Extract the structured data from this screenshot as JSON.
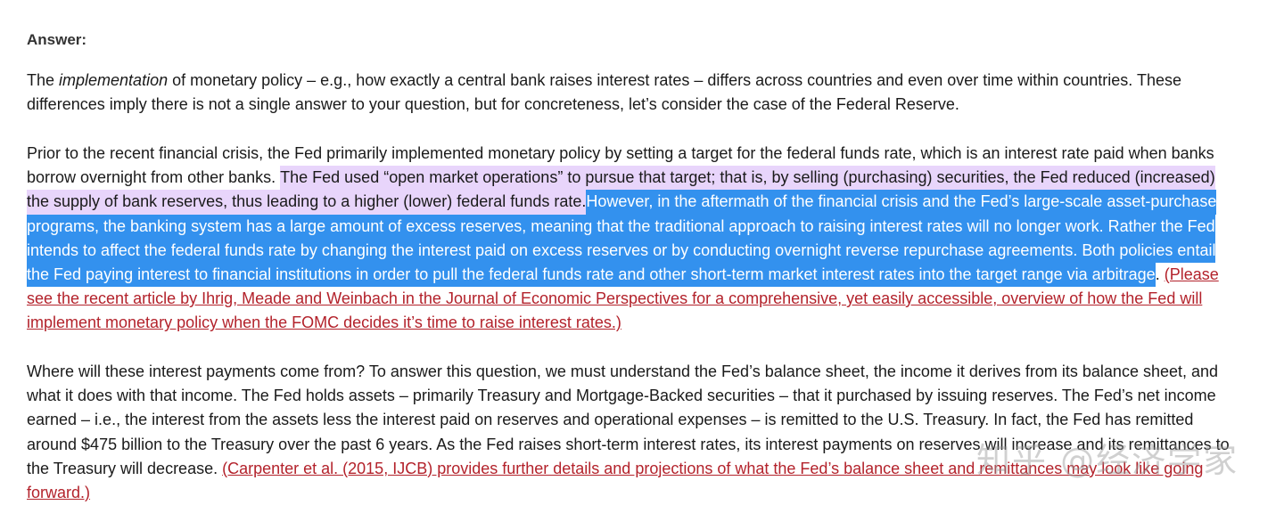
{
  "answer_label": "Answer:",
  "watermark": "知乎 @经济学家",
  "colors": {
    "highlight_purple": "#e8d5fb",
    "highlight_blue": "#3391ee",
    "link": "#b3222b"
  },
  "paragraphs": [
    [
      [
        {
          "t": "The "
        },
        {
          "t": "implementation",
          "s": "i"
        },
        {
          "t": " of monetary policy – e.g., how exactly a central bank raises interest rates – differs across countries and even over time within countries. These"
        }
      ],
      [
        {
          "t": "differences imply there is not a single answer to your question, but for concreteness, let’s consider the case of the Federal Reserve."
        }
      ]
    ],
    [
      [
        {
          "t": "Prior to the recent financial crisis, the Fed primarily implemented monetary policy by setting a target for the federal funds rate, which is an interest rate paid when banks"
        }
      ],
      [
        {
          "t": "borrow overnight from other banks. "
        },
        {
          "t": "The Fed used “open market operations” to pursue that target; that is, by selling (purchasing) securities, the Fed reduced (increased)",
          "s": "p"
        }
      ],
      [
        {
          "t": "the supply of bank reserves, thus leading to a higher (lower) federal funds rate.",
          "s": "p"
        },
        {
          "t": " However, in the aftermath of the financial crisis and the Fed’s large-scale asset-purchase",
          "s": "b"
        }
      ],
      [
        {
          "t": "programs, the banking system has a large amount of excess reserves, meaning that the traditional approach to raising interest rates will no longer work. Rather the Fed",
          "s": "b"
        }
      ],
      [
        {
          "t": "intends to affect the federal funds rate by changing the interest paid on excess reserves or by conducting overnight reverse repurchase agreements. Both policies entail",
          "s": "b"
        }
      ],
      [
        {
          "t": "the Fed paying interest to financial institutions in order to pull the federal funds rate and other short-term market interest rates into the target range via arbitrage",
          "s": "b"
        },
        {
          "t": ". "
        },
        {
          "t": "(Please",
          "s": "l"
        }
      ],
      [
        {
          "t": "see the recent article by Ihrig, Meade and Weinbach in the Journal of Economic Perspectives for a comprehensive, yet easily accessible, overview of how the Fed will",
          "s": "l"
        }
      ],
      [
        {
          "t": "implement monetary policy when the FOMC decides it’s time to raise interest rates.)",
          "s": "l"
        }
      ]
    ],
    [
      [
        {
          "t": "Where will these interest payments come from? To answer this question, we must understand the Fed’s balance sheet, the income it derives from its balance sheet, and"
        }
      ],
      [
        {
          "t": "what it does with that income. The Fed holds assets – primarily Treasury and Mortgage-Backed securities – that it purchased by issuing reserves. The Fed’s net income"
        }
      ],
      [
        {
          "t": "earned – i.e., the interest from the assets less the interest paid on reserves and operational expenses – is remitted to the U.S. Treasury. In fact, the Fed has remitted"
        }
      ],
      [
        {
          "t": "around $475 billion to the Treasury over the past 6 years. As the Fed raises short-term interest rates, its interest payments on reserves will increase and its remittances to"
        }
      ],
      [
        {
          "t": "the Treasury will decrease. "
        },
        {
          "t": "(Carpenter et al. (2015, IJCB) provides further details and projections of what the Fed’s balance sheet and remittances may look like going",
          "s": "l"
        }
      ],
      [
        {
          "t": "forward.)",
          "s": "l"
        }
      ]
    ]
  ]
}
